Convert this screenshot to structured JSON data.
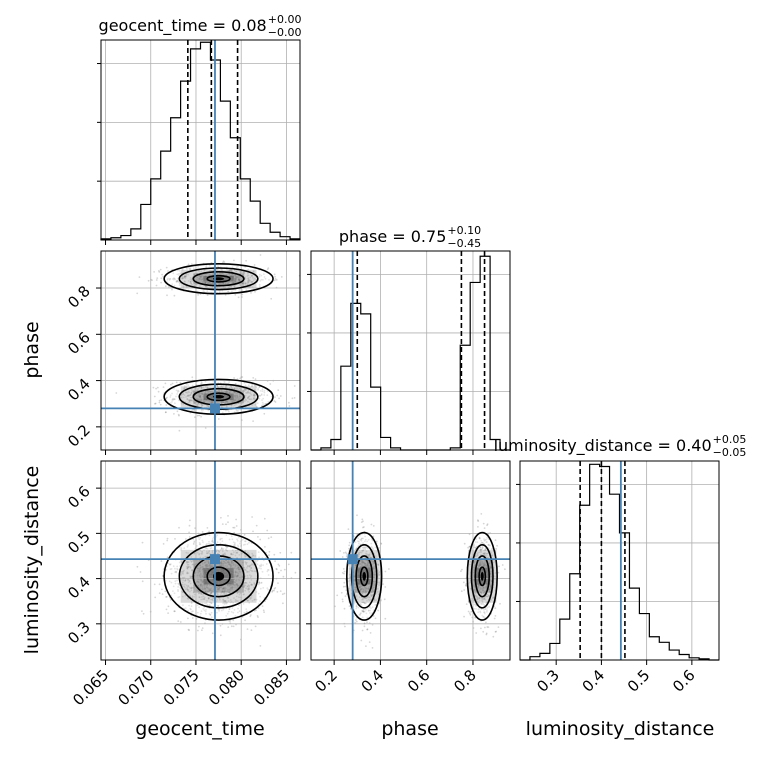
{
  "chart_data": {
    "type": "corner",
    "parameters": [
      "geocent_time",
      "phase",
      "luminosity_distance"
    ],
    "titles": [
      {
        "param": "geocent_time",
        "value": "0.08",
        "plus": "+0.00",
        "minus": "−0.00"
      },
      {
        "param": "phase",
        "value": "0.75",
        "plus": "+0.10",
        "minus": "−0.45"
      },
      {
        "param": "luminosity_distance",
        "value": "0.40",
        "plus": "+0.05",
        "minus": "−0.05"
      }
    ],
    "ranges": {
      "geocent_time": [
        0.0645,
        0.0865
      ],
      "phase": [
        0.1,
        0.96
      ],
      "luminosity_distance": [
        0.22,
        0.66
      ]
    },
    "ticks": {
      "geocent_time": [
        "0.065",
        "0.070",
        "0.075",
        "0.080",
        "0.085"
      ],
      "phase": [
        "0.2",
        "0.4",
        "0.6",
        "0.8"
      ],
      "luminosity_distance": [
        "0.3",
        "0.4",
        "0.5",
        "0.6"
      ]
    },
    "truths": {
      "geocent_time": 0.0771,
      "phase": 0.28,
      "luminosity_distance": 0.443
    },
    "quantiles": {
      "geocent_time": [
        0.0741,
        0.0767,
        0.0796
      ],
      "phase": [
        0.3,
        0.75,
        0.85
      ],
      "luminosity_distance": [
        0.353,
        0.4,
        0.452
      ]
    },
    "histograms": {
      "geocent_time": {
        "edges": [
          0.0645,
          0.0656,
          0.0667,
          0.0678,
          0.0689,
          0.07,
          0.0711,
          0.0722,
          0.0733,
          0.0744,
          0.0755,
          0.0766,
          0.0777,
          0.0788,
          0.0799,
          0.081,
          0.0821,
          0.0832,
          0.0843,
          0.0854,
          0.0865
        ],
        "counts": [
          1,
          2,
          4,
          10,
          32,
          55,
          80,
          110,
          143,
          172,
          178,
          162,
          125,
          92,
          55,
          35,
          15,
          7,
          3,
          1
        ]
      },
      "phase": {
        "edges": [
          0.1,
          0.143,
          0.186,
          0.229,
          0.272,
          0.315,
          0.358,
          0.401,
          0.444,
          0.487,
          0.53,
          0.573,
          0.616,
          0.659,
          0.702,
          0.745,
          0.788,
          0.831,
          0.874,
          0.917,
          0.96
        ],
        "counts": [
          0,
          2,
          10,
          80,
          140,
          130,
          60,
          12,
          2,
          0,
          0,
          0,
          0,
          0,
          2,
          100,
          160,
          185,
          10,
          0
        ]
      },
      "luminosity_distance": {
        "edges": [
          0.22,
          0.242,
          0.264,
          0.286,
          0.308,
          0.33,
          0.352,
          0.374,
          0.396,
          0.418,
          0.44,
          0.462,
          0.484,
          0.506,
          0.528,
          0.55,
          0.572,
          0.594,
          0.616,
          0.638,
          0.66
        ],
        "counts": [
          0,
          3,
          6,
          15,
          37,
          78,
          140,
          177,
          175,
          150,
          115,
          65,
          42,
          21,
          16,
          9,
          5,
          2,
          1,
          0
        ]
      }
    },
    "grid": true
  }
}
